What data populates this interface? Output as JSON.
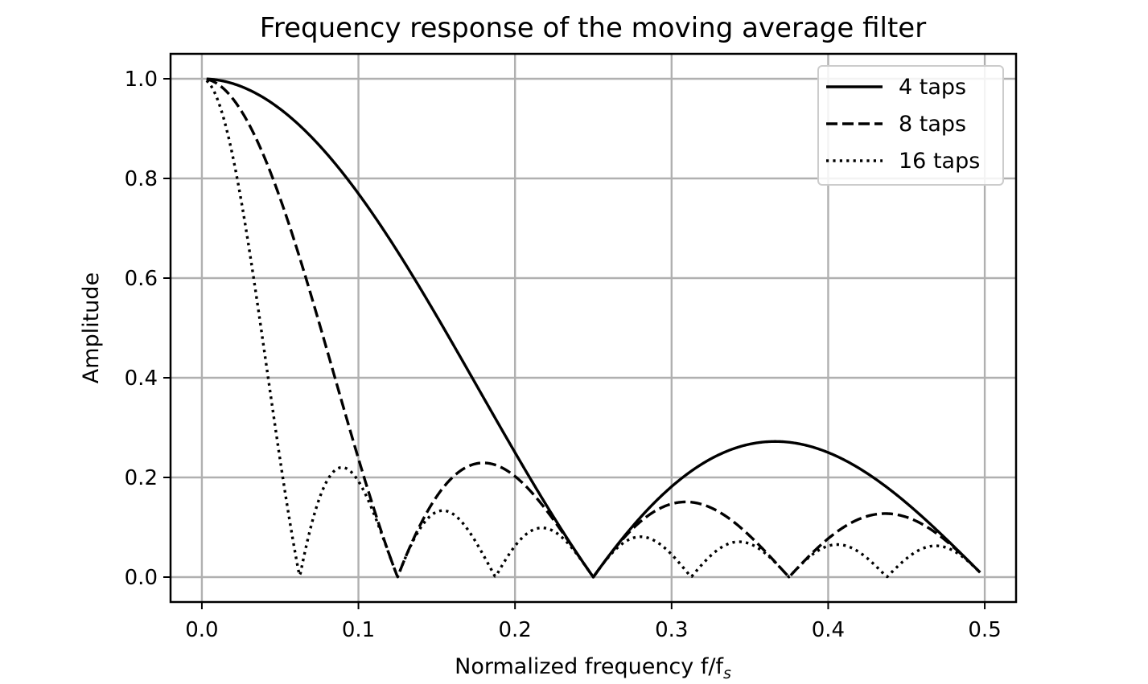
{
  "chart_data": {
    "type": "line",
    "title": "Frequency response of the moving average filter",
    "xlabel_main": "Normalized frequency f/f",
    "xlabel_sub": "s",
    "ylabel": "Amplitude",
    "xlim": [
      -0.02,
      0.52
    ],
    "ylim": [
      -0.05,
      1.05
    ],
    "grid": true,
    "legend_position": "top-right",
    "x_ticks": [
      0.0,
      0.1,
      0.2,
      0.3,
      0.4,
      0.5
    ],
    "x_tick_labels": [
      "0.0",
      "0.1",
      "0.2",
      "0.3",
      "0.4",
      "0.5"
    ],
    "y_ticks": [
      0.0,
      0.2,
      0.4,
      0.6,
      0.8,
      1.0
    ],
    "y_tick_labels": [
      "0.0",
      "0.2",
      "0.4",
      "0.6",
      "0.8",
      "1.0"
    ],
    "x_range": [
      0.003,
      0.497
    ],
    "series": [
      {
        "name": "4 taps",
        "taps": 4,
        "style": "solid",
        "x": [
          0.003,
          0.05,
          0.1,
          0.15,
          0.2,
          0.25,
          0.3,
          0.35,
          0.367,
          0.4,
          0.45,
          0.497
        ],
        "y": [
          1.0,
          0.924,
          0.717,
          0.434,
          0.154,
          0.0,
          0.176,
          0.265,
          0.272,
          0.25,
          0.149,
          0.01
        ]
      },
      {
        "name": "8 taps",
        "taps": 8,
        "style": "dashed",
        "x": [
          0.003,
          0.05,
          0.1,
          0.125,
          0.15,
          0.18,
          0.2,
          0.25,
          0.31,
          0.375,
          0.4,
          0.437,
          0.497
        ],
        "y": [
          0.999,
          0.721,
          0.234,
          0.0,
          0.125,
          0.228,
          0.189,
          0.0,
          0.15,
          0.0,
          0.073,
          0.128,
          0.01
        ]
      },
      {
        "name": "16 taps",
        "taps": 16,
        "style": "dotted",
        "x": [
          0.003,
          0.03,
          0.0625,
          0.09,
          0.125,
          0.15,
          0.1875,
          0.22,
          0.25,
          0.28,
          0.3125,
          0.34,
          0.375,
          0.406,
          0.4375,
          0.47,
          0.497
        ],
        "y": [
          0.998,
          0.547,
          0.0,
          0.217,
          0.0,
          0.131,
          0.0,
          0.1,
          0.0,
          0.08,
          0.0,
          0.07,
          0.0,
          0.065,
          0.0,
          0.062,
          0.01
        ]
      }
    ]
  }
}
